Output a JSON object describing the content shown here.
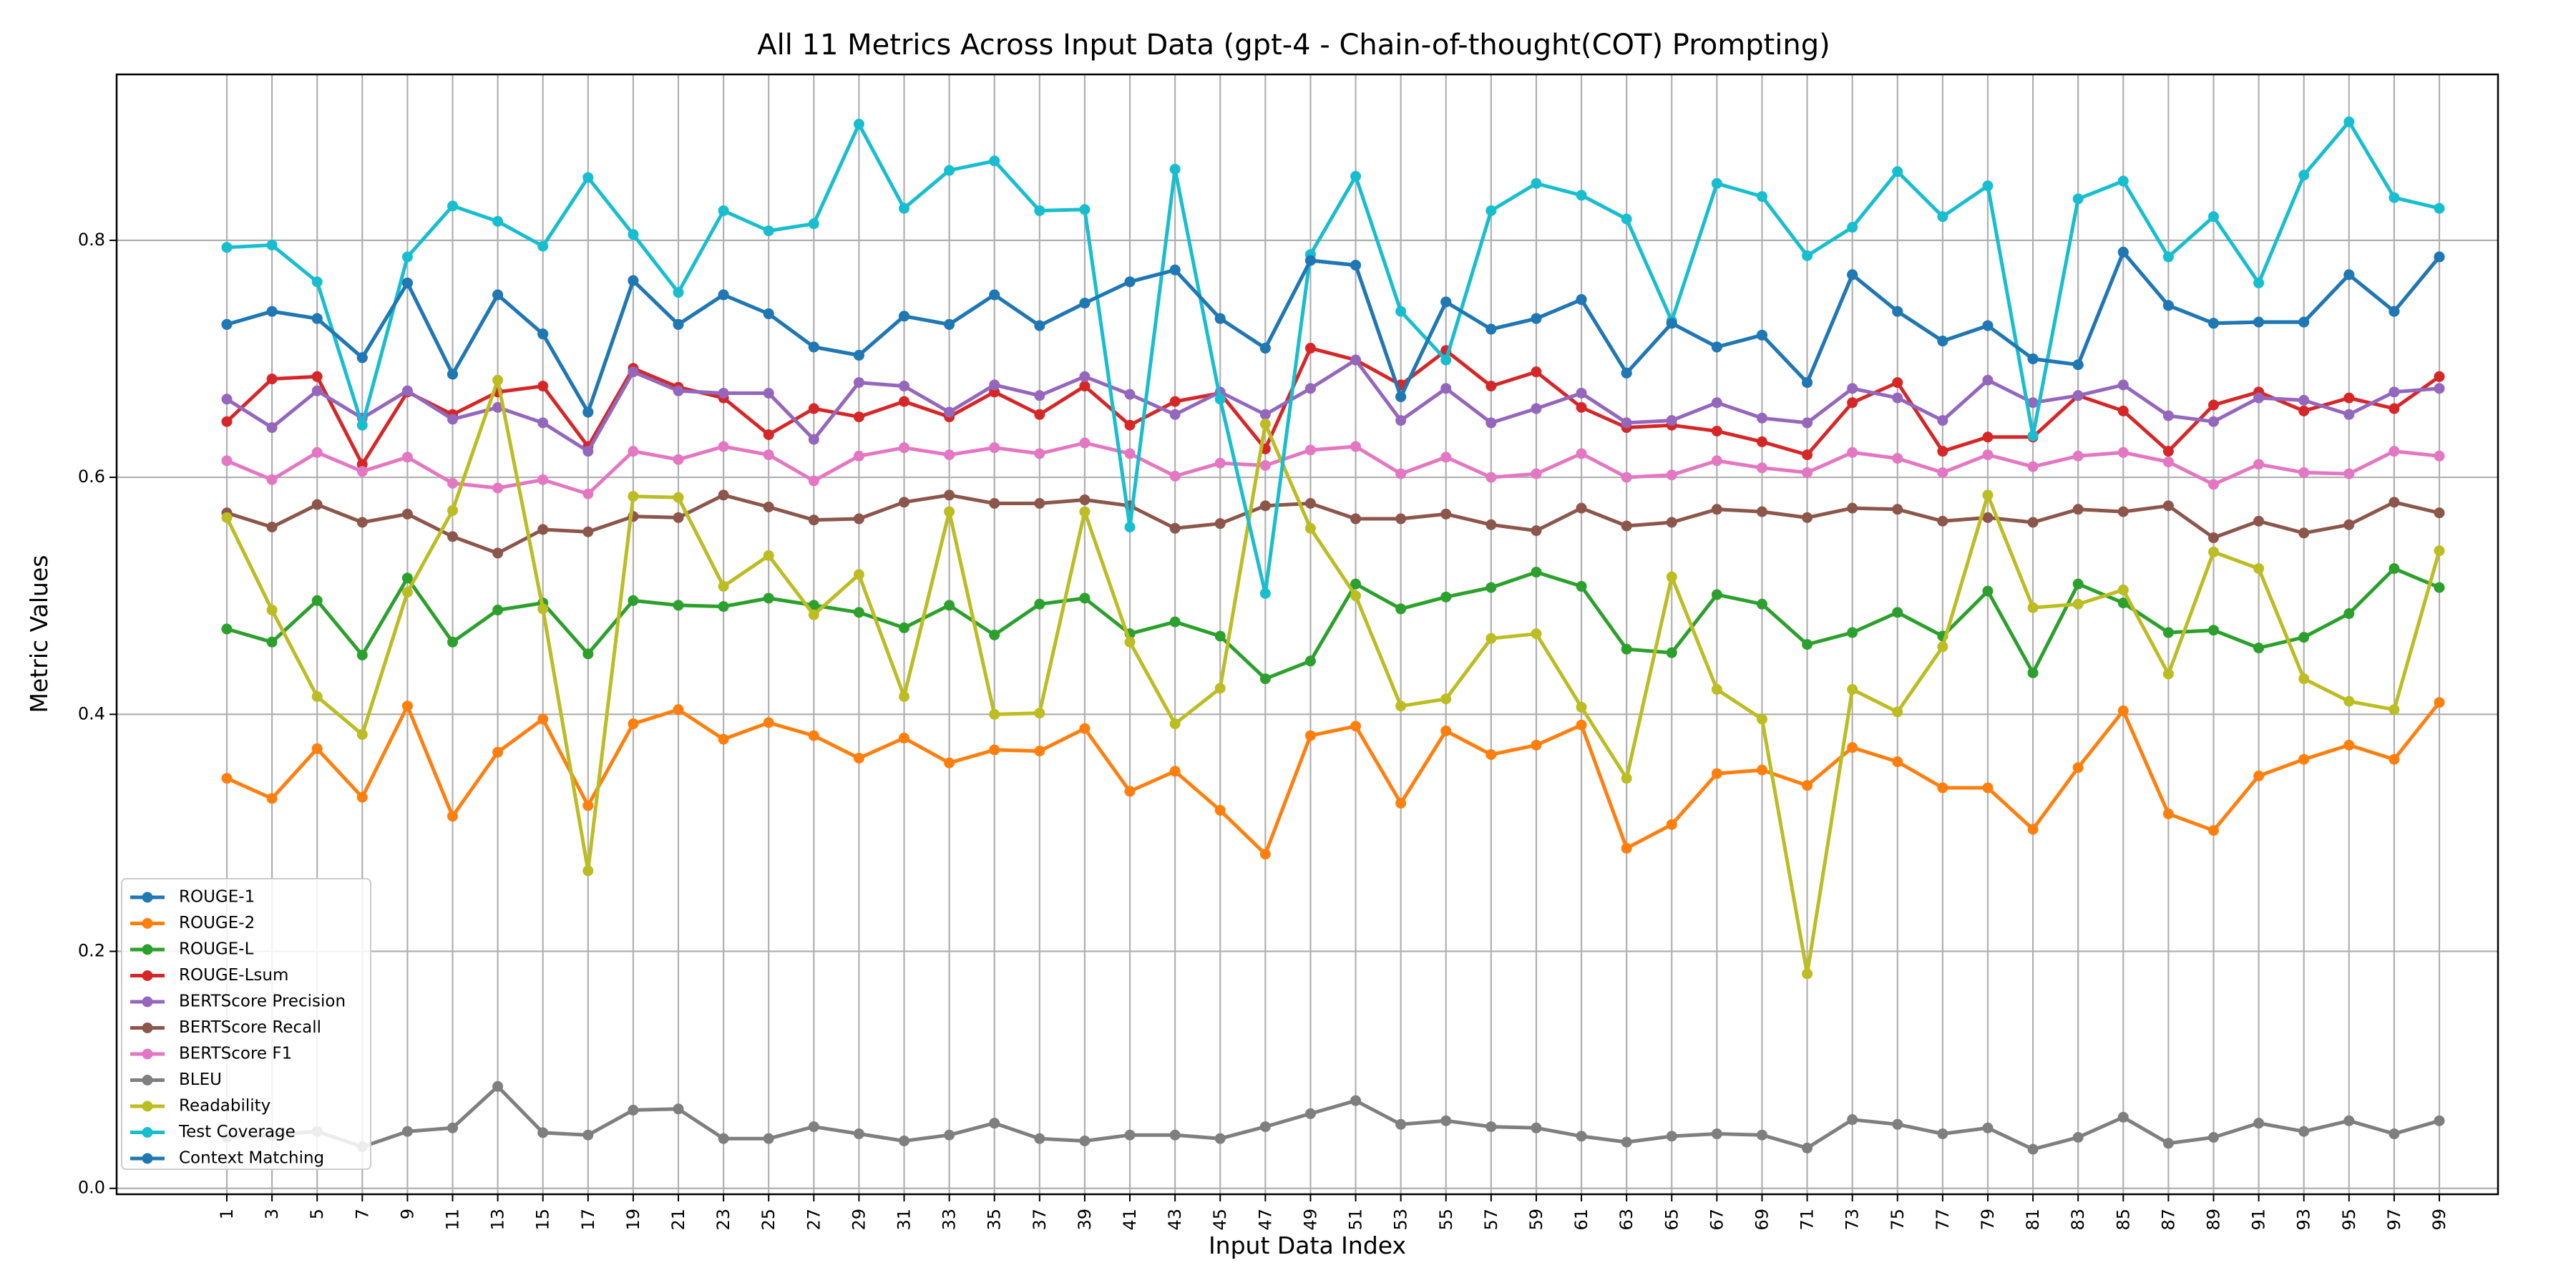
{
  "chart_data": {
    "type": "line",
    "title": "All 11 Metrics Across Input Data (gpt-4 - Chain-of-thought(COT) Prompting)",
    "xlabel": "Input Data Index",
    "ylabel": "Metric Values",
    "x": [
      1,
      3,
      5,
      7,
      9,
      11,
      13,
      15,
      17,
      19,
      21,
      23,
      25,
      27,
      29,
      31,
      33,
      35,
      37,
      39,
      41,
      43,
      45,
      47,
      49,
      51,
      53,
      55,
      57,
      59,
      61,
      63,
      65,
      67,
      69,
      71,
      73,
      75,
      77,
      79,
      81,
      83,
      85,
      87,
      89,
      91,
      93,
      95,
      97,
      99
    ],
    "x_tick_labels": [
      "1",
      "3",
      "5",
      "7",
      "9",
      "11",
      "13",
      "15",
      "17",
      "19",
      "21",
      "23",
      "25",
      "27",
      "29",
      "31",
      "33",
      "35",
      "37",
      "39",
      "41",
      "43",
      "45",
      "47",
      "49",
      "51",
      "53",
      "55",
      "57",
      "59",
      "61",
      "63",
      "65",
      "67",
      "69",
      "71",
      "73",
      "75",
      "77",
      "79",
      "81",
      "83",
      "85",
      "87",
      "89",
      "91",
      "93",
      "95",
      "97",
      "99"
    ],
    "y_tick_labels": [
      "0.0",
      "0.2",
      "0.4",
      "0.6",
      "0.8"
    ],
    "yticks": [
      0.0,
      0.2,
      0.4,
      0.6,
      0.8
    ],
    "ylim": [
      -0.005,
      0.94
    ],
    "grid": true,
    "legend_position": "bottom-left",
    "series": [
      {
        "name": "ROUGE-1",
        "color": "#1f77b4",
        "values": [
          0.729,
          0.74,
          0.734,
          0.701,
          0.764,
          0.687,
          0.754,
          0.721,
          0.655,
          0.766,
          0.729,
          0.754,
          0.738,
          0.71,
          0.703,
          0.736,
          0.729,
          0.754,
          0.728,
          0.747,
          0.765,
          0.775,
          0.734,
          0.709,
          0.783,
          0.779,
          0.668,
          0.748,
          0.725,
          0.734,
          0.75,
          0.688,
          0.73,
          0.71,
          0.72,
          0.68,
          0.771,
          0.74,
          0.715,
          0.728,
          0.7,
          0.695,
          0.79,
          0.745,
          0.73,
          0.731,
          0.731,
          0.771,
          0.74,
          0.786
        ]
      },
      {
        "name": "ROUGE-2",
        "color": "#ff7f0e",
        "values": [
          0.346,
          0.329,
          0.371,
          0.33,
          0.407,
          0.314,
          0.368,
          0.396,
          0.323,
          0.392,
          0.404,
          0.379,
          0.393,
          0.382,
          0.363,
          0.38,
          0.359,
          0.37,
          0.369,
          0.388,
          0.335,
          0.352,
          0.319,
          0.282,
          0.382,
          0.39,
          0.325,
          0.386,
          0.366,
          0.374,
          0.391,
          0.287,
          0.307,
          0.35,
          0.353,
          0.34,
          0.372,
          0.36,
          0.338,
          0.338,
          0.303,
          0.355,
          0.403,
          0.316,
          0.302,
          0.348,
          0.362,
          0.374,
          0.362,
          0.41
        ]
      },
      {
        "name": "ROUGE-L",
        "color": "#2ca02c",
        "values": [
          0.472,
          0.461,
          0.496,
          0.45,
          0.515,
          0.461,
          0.488,
          0.494,
          0.451,
          0.496,
          0.492,
          0.491,
          0.498,
          0.492,
          0.486,
          0.473,
          0.492,
          0.467,
          0.493,
          0.498,
          0.468,
          0.478,
          0.466,
          0.43,
          0.445,
          0.51,
          0.489,
          0.499,
          0.507,
          0.52,
          0.508,
          0.455,
          0.452,
          0.501,
          0.493,
          0.459,
          0.469,
          0.486,
          0.466,
          0.504,
          0.435,
          0.51,
          0.494,
          0.469,
          0.471,
          0.456,
          0.465,
          0.485,
          0.523,
          0.507
        ]
      },
      {
        "name": "ROUGE-Lsum",
        "color": "#d62728",
        "values": [
          0.647,
          0.683,
          0.685,
          0.611,
          0.672,
          0.653,
          0.672,
          0.677,
          0.626,
          0.692,
          0.676,
          0.667,
          0.636,
          0.658,
          0.651,
          0.664,
          0.651,
          0.672,
          0.653,
          0.677,
          0.644,
          0.664,
          0.671,
          0.624,
          0.709,
          0.699,
          0.678,
          0.707,
          0.677,
          0.689,
          0.659,
          0.642,
          0.644,
          0.639,
          0.63,
          0.619,
          0.663,
          0.68,
          0.622,
          0.634,
          0.634,
          0.669,
          0.656,
          0.622,
          0.661,
          0.672,
          0.656,
          0.667,
          0.658,
          0.685
        ]
      },
      {
        "name": "BERTScore Precision",
        "color": "#9467bd",
        "values": [
          0.666,
          0.642,
          0.673,
          0.65,
          0.673,
          0.649,
          0.659,
          0.646,
          0.622,
          0.689,
          0.673,
          0.671,
          0.671,
          0.632,
          0.68,
          0.677,
          0.655,
          0.678,
          0.669,
          0.685,
          0.67,
          0.653,
          0.672,
          0.653,
          0.675,
          0.699,
          0.648,
          0.675,
          0.646,
          0.658,
          0.671,
          0.646,
          0.648,
          0.663,
          0.65,
          0.646,
          0.675,
          0.667,
          0.648,
          0.682,
          0.663,
          0.669,
          0.678,
          0.652,
          0.647,
          0.667,
          0.665,
          0.653,
          0.672,
          0.675
        ]
      },
      {
        "name": "BERTScore Recall",
        "color": "#8c564b",
        "values": [
          0.57,
          0.558,
          0.577,
          0.562,
          0.569,
          0.55,
          0.536,
          0.556,
          0.554,
          0.567,
          0.566,
          0.585,
          0.575,
          0.564,
          0.565,
          0.579,
          0.585,
          0.578,
          0.578,
          0.581,
          0.576,
          0.557,
          0.561,
          0.576,
          0.578,
          0.565,
          0.565,
          0.569,
          0.56,
          0.555,
          0.574,
          0.559,
          0.562,
          0.573,
          0.571,
          0.566,
          0.574,
          0.573,
          0.563,
          0.566,
          0.562,
          0.573,
          0.571,
          0.576,
          0.549,
          0.563,
          0.553,
          0.56,
          0.579,
          0.57
        ]
      },
      {
        "name": "BERTScore F1",
        "color": "#e377c2",
        "values": [
          0.614,
          0.598,
          0.621,
          0.605,
          0.617,
          0.595,
          0.591,
          0.598,
          0.586,
          0.622,
          0.615,
          0.626,
          0.619,
          0.597,
          0.618,
          0.625,
          0.619,
          0.625,
          0.62,
          0.629,
          0.62,
          0.601,
          0.612,
          0.61,
          0.623,
          0.626,
          0.603,
          0.617,
          0.6,
          0.603,
          0.62,
          0.6,
          0.602,
          0.614,
          0.608,
          0.604,
          0.621,
          0.616,
          0.604,
          0.619,
          0.609,
          0.618,
          0.621,
          0.613,
          0.594,
          0.611,
          0.604,
          0.603,
          0.622,
          0.618
        ]
      },
      {
        "name": "BLEU",
        "color": "#7f7f7f",
        "values": [
          0.043,
          0.045,
          0.048,
          0.035,
          0.048,
          0.051,
          0.086,
          0.047,
          0.045,
          0.066,
          0.067,
          0.042,
          0.042,
          0.052,
          0.046,
          0.04,
          0.045,
          0.055,
          0.042,
          0.04,
          0.045,
          0.045,
          0.042,
          0.052,
          0.063,
          0.074,
          0.054,
          0.057,
          0.052,
          0.051,
          0.044,
          0.039,
          0.044,
          0.046,
          0.045,
          0.034,
          0.058,
          0.054,
          0.046,
          0.051,
          0.033,
          0.043,
          0.06,
          0.038,
          0.043,
          0.055,
          0.048,
          0.057,
          0.046,
          0.057
        ]
      },
      {
        "name": "Readability",
        "color": "#bcbd22",
        "values": [
          0.566,
          0.488,
          0.415,
          0.383,
          0.503,
          0.572,
          0.682,
          0.489,
          0.268,
          0.584,
          0.583,
          0.508,
          0.534,
          0.484,
          0.518,
          0.415,
          0.571,
          0.4,
          0.401,
          0.571,
          0.461,
          0.392,
          0.422,
          0.645,
          0.557,
          0.5,
          0.407,
          0.413,
          0.464,
          0.468,
          0.406,
          0.346,
          0.516,
          0.421,
          0.396,
          0.181,
          0.421,
          0.402,
          0.457,
          0.585,
          0.49,
          0.493,
          0.505,
          0.434,
          0.537,
          0.523,
          0.43,
          0.411,
          0.404,
          0.538
        ]
      },
      {
        "name": "Test Coverage",
        "color": "#17becf",
        "values": [
          0.794,
          0.796,
          0.765,
          0.644,
          0.786,
          0.829,
          0.816,
          0.795,
          0.853,
          0.805,
          0.756,
          0.825,
          0.808,
          0.814,
          0.898,
          0.827,
          0.859,
          0.867,
          0.825,
          0.826,
          0.558,
          0.86,
          0.666,
          0.502,
          0.788,
          0.854,
          0.74,
          0.699,
          0.825,
          0.848,
          0.838,
          0.818,
          0.732,
          0.848,
          0.837,
          0.787,
          0.811,
          0.858,
          0.82,
          0.846,
          0.635,
          0.835,
          0.85,
          0.786,
          0.82,
          0.764,
          0.855,
          0.9,
          0.836,
          0.827
        ]
      },
      {
        "name": "Context Matching",
        "color": "#1f77b4",
        "values": [
          0.729,
          0.74,
          0.734,
          0.701,
          0.764,
          0.687,
          0.754,
          0.721,
          0.655,
          0.766,
          0.729,
          0.754,
          0.738,
          0.71,
          0.703,
          0.736,
          0.729,
          0.754,
          0.728,
          0.747,
          0.765,
          0.775,
          0.734,
          0.709,
          0.783,
          0.779,
          0.668,
          0.748,
          0.725,
          0.734,
          0.75,
          0.688,
          0.73,
          0.71,
          0.72,
          0.68,
          0.771,
          0.74,
          0.715,
          0.728,
          0.7,
          0.695,
          0.79,
          0.745,
          0.73,
          0.731,
          0.731,
          0.771,
          0.74,
          0.786
        ]
      }
    ]
  }
}
